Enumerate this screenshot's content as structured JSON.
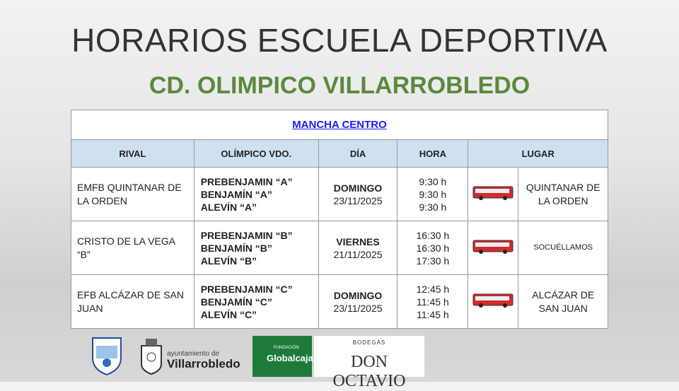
{
  "header": {
    "title": "HORARIOS ESCUELA DEPORTIVA",
    "subtitle": "CD. OLIMPICO VILLARROBLEDO"
  },
  "table": {
    "section": "MANCHA CENTRO",
    "columns": [
      "RIVAL",
      "OLÍMPICO VDO.",
      "DÍA",
      "HORA",
      "LUGAR"
    ],
    "rows": [
      {
        "rival": "EMFB QUINTANAR DE LA ORDEN",
        "teams": [
          "PREBENJAMIN “A”",
          "BENJAMÍN “A”",
          "ALEVÍN “A”"
        ],
        "day": "DOMINGO",
        "date": "23/11/2025",
        "times": [
          "9:30 h",
          "9:30 h",
          "9:30 h"
        ],
        "place": "QUINTANAR DE LA ORDEN"
      },
      {
        "rival": "CRISTO DE LA VEGA “B”",
        "teams": [
          "PREBENJAMIN “B”",
          "BENJAMÍN “B”",
          "ALEVÍN “B”"
        ],
        "day": "VIERNES",
        "date": "21/11/2025",
        "times": [
          "16:30 h",
          "16:30 h",
          "17:30 h"
        ],
        "place": "SOCUÉLLAMOS"
      },
      {
        "rival": "EFB ALCÁZAR DE SAN JUAN",
        "teams": [
          "PREBENJAMIN “C”",
          "BENJAMÍN “C”",
          "ALEVÍN “C”"
        ],
        "day": "DOMINGO",
        "date": "23/11/2025",
        "times": [
          "12:45 h",
          "11:45 h",
          "11:45 h"
        ],
        "place": "ALCÁZAR DE SAN JUAN"
      }
    ]
  },
  "sponsors": {
    "ayuntamiento": "ayuntamiento de",
    "city": "Villarrobledo",
    "fundacion": "FUNDACIÓN",
    "globalcaja": "Globalcaja",
    "bodegas": "BODEGAS",
    "don_octavio": "DON OCTAVIO"
  }
}
